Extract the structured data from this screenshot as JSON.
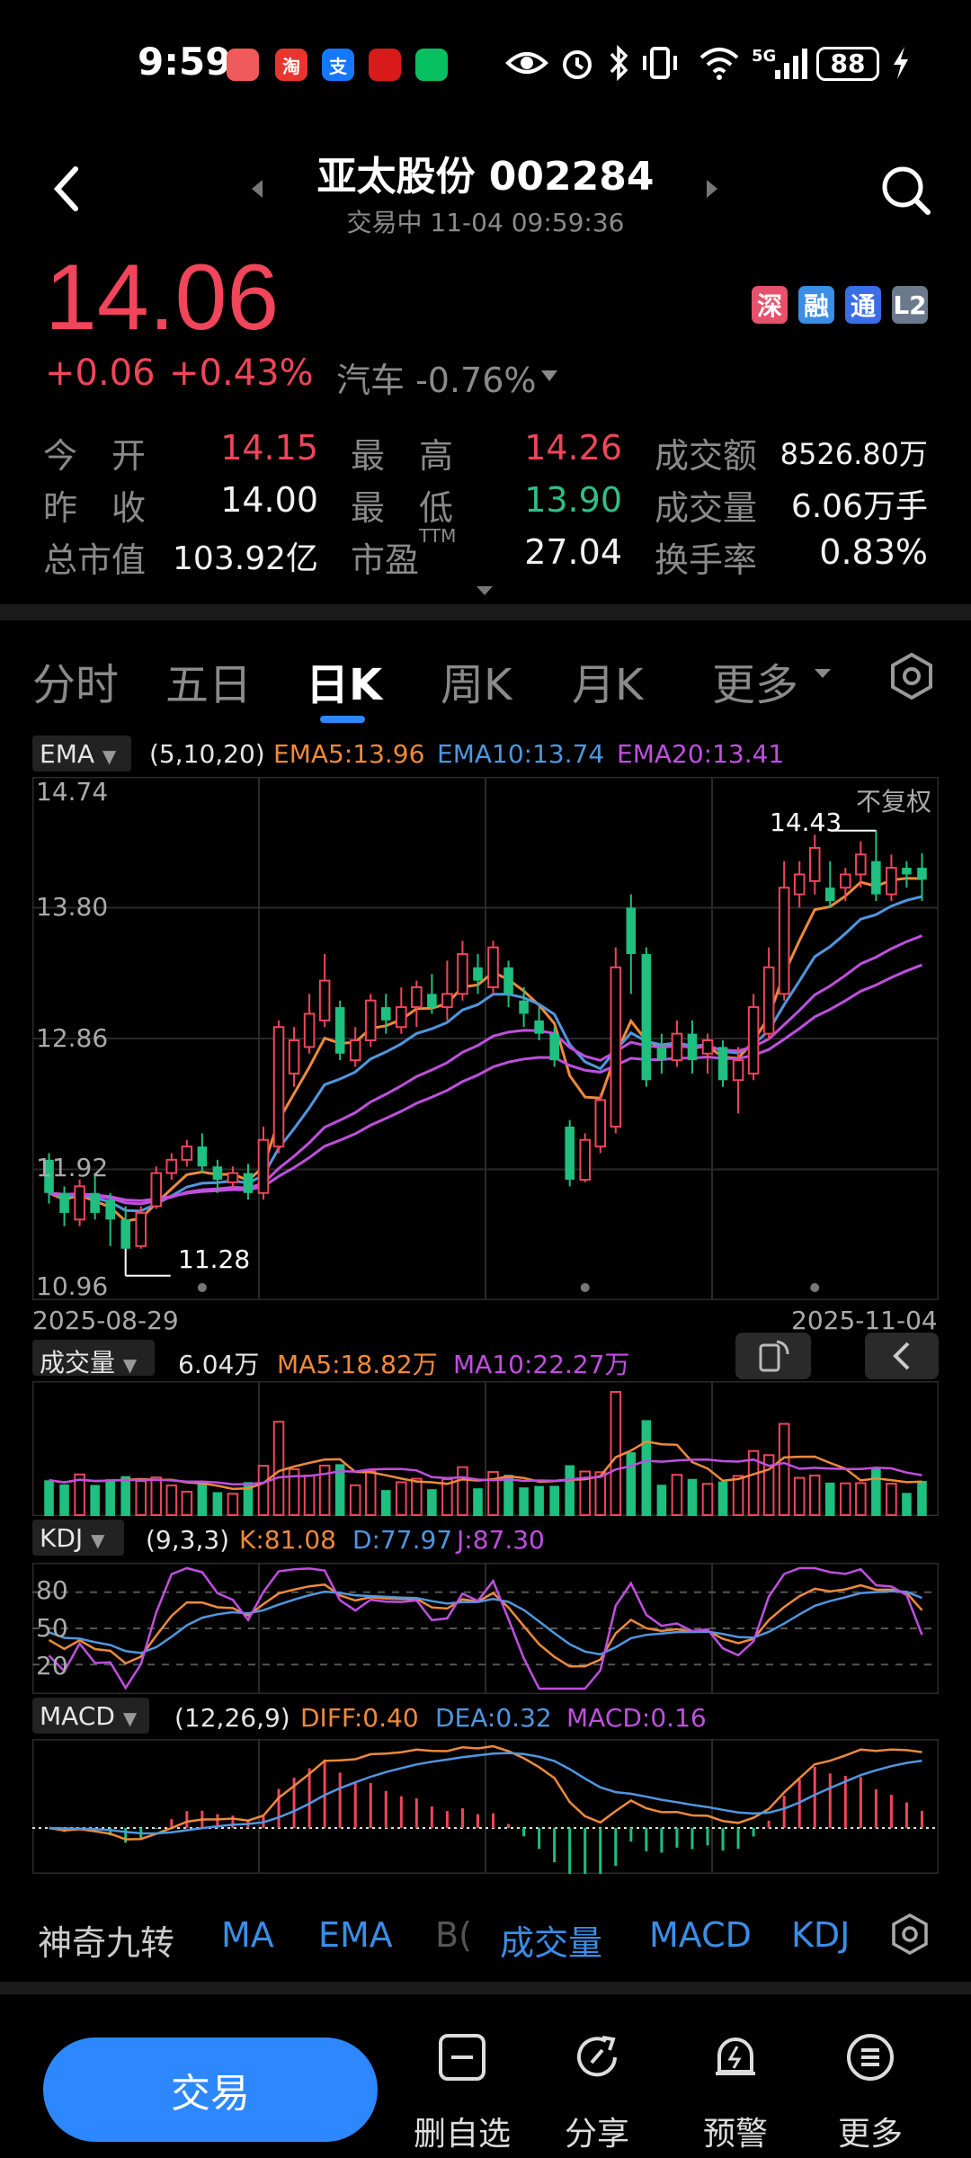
{
  "status_bar": {
    "time": "9:59",
    "battery": "88",
    "network": "5G",
    "apps": [
      {
        "name": "notes-app-icon",
        "glyph": "",
        "color": "#f05a5a"
      },
      {
        "name": "taobao-app-icon",
        "glyph": "淘",
        "color": "#e8362f"
      },
      {
        "name": "alipay-app-icon",
        "glyph": "支",
        "color": "#1677ff"
      },
      {
        "name": "finance-app-icon",
        "glyph": "",
        "color": "#d91a1a"
      },
      {
        "name": "wechat-app-icon",
        "glyph": "",
        "color": "#07c160"
      }
    ]
  },
  "header": {
    "title": "亚太股份 002284",
    "status": "交易中 11-04 09:59:36"
  },
  "quote": {
    "price": "14.06",
    "change": "+0.06",
    "change_pct": "+0.43%",
    "sector": "汽车 -0.76%",
    "tags": [
      "深",
      "融",
      "通",
      "L2"
    ]
  },
  "stats": {
    "rows": [
      [
        {
          "label": "今　开",
          "value": "14.15",
          "color": "red"
        },
        {
          "label": "最　高",
          "value": "14.26",
          "color": "red"
        },
        {
          "label": "成交额",
          "value": "8526.80万",
          "color": "white"
        }
      ],
      [
        {
          "label": "昨　收",
          "value": "14.00",
          "color": "white"
        },
        {
          "label": "最　低",
          "value": "13.90",
          "color": "green"
        },
        {
          "label": "成交量",
          "value": "6.06万手",
          "color": "white"
        }
      ],
      [
        {
          "label": "总市值",
          "value": "103.92亿",
          "color": "white"
        },
        {
          "label": "市盈",
          "value": "27.04",
          "color": "white",
          "sup": "TTM"
        },
        {
          "label": "换手率",
          "value": "0.83%",
          "color": "white"
        }
      ]
    ]
  },
  "tabs": [
    "分时",
    "五日",
    "日K",
    "周K",
    "月K",
    "更多"
  ],
  "active_tab": "日K",
  "ema": {
    "chip": "EMA",
    "params": "(5,10,20)",
    "ema5": "EMA5:13.96",
    "ema10": "EMA10:13.74",
    "ema20": "EMA20:13.41",
    "colors": {
      "ema5": "#ef8a3a",
      "ema10": "#4f97e0",
      "ema20": "#c04fe0"
    }
  },
  "kline": {
    "y_ticks": [
      "14.74",
      "13.80",
      "12.86",
      "11.92",
      "10.96"
    ],
    "adjust_label": "不复权",
    "high_label": "14.43",
    "low_label": "11.28",
    "date_start": "2025-08-29",
    "date_end": "2025-11-04"
  },
  "volume": {
    "chip": "成交量",
    "value": "6.04万",
    "ma5": "MA5:18.82万",
    "ma10": "MA10:22.27万"
  },
  "kdj": {
    "chip": "KDJ",
    "params": "(9,3,3)",
    "k": "K:81.08",
    "d": "D:77.97",
    "j": "J:87.30",
    "levels": [
      "80",
      "50",
      "20"
    ]
  },
  "macd": {
    "chip": "MACD",
    "params": "(12,26,9)",
    "diff": "DIFF:0.40",
    "dea": "DEA:0.32",
    "macd": "MACD:0.16"
  },
  "indicator_bar": {
    "items": [
      "神奇九转",
      "MA",
      "EMA",
      "B(",
      "成交量",
      "MACD",
      "KDJ"
    ]
  },
  "bottom_nav": {
    "trade": "交易",
    "items": [
      "删自选",
      "分享",
      "预警",
      "更多"
    ]
  },
  "chart_data": {
    "type": "candlestick",
    "date_range": [
      "2025-08-29",
      "2025-11-04"
    ],
    "y_range": [
      10.96,
      14.74
    ],
    "candles": [
      [
        11.95,
        11.7,
        12.0,
        11.62
      ],
      [
        11.7,
        11.55,
        11.75,
        11.45
      ],
      [
        11.5,
        11.75,
        11.8,
        11.45
      ],
      [
        11.7,
        11.55,
        11.85,
        11.5
      ],
      [
        11.65,
        11.5,
        11.7,
        11.3
      ],
      [
        11.5,
        11.28,
        11.6,
        11.28
      ],
      [
        11.3,
        11.55,
        11.6,
        11.28
      ],
      [
        11.6,
        11.85,
        11.9,
        11.58
      ],
      [
        11.85,
        11.95,
        12.0,
        11.8
      ],
      [
        11.95,
        12.05,
        12.1,
        11.9
      ],
      [
        12.05,
        11.9,
        12.15,
        11.85
      ],
      [
        11.9,
        11.8,
        11.95,
        11.7
      ],
      [
        11.78,
        11.85,
        11.9,
        11.74
      ],
      [
        11.85,
        11.7,
        11.92,
        11.65
      ],
      [
        11.7,
        12.1,
        12.2,
        11.65
      ],
      [
        12.05,
        12.95,
        13.0,
        12.0
      ],
      [
        12.6,
        12.85,
        12.95,
        12.5
      ],
      [
        12.8,
        13.05,
        13.2,
        12.75
      ],
      [
        13.0,
        13.3,
        13.5,
        12.95
      ],
      [
        13.1,
        12.75,
        13.15,
        12.7
      ],
      [
        12.7,
        12.85,
        12.95,
        12.65
      ],
      [
        12.85,
        13.15,
        13.2,
        12.8
      ],
      [
        13.1,
        13.0,
        13.2,
        12.9
      ],
      [
        12.95,
        13.1,
        13.25,
        12.9
      ],
      [
        13.1,
        13.25,
        13.3,
        12.95
      ],
      [
        13.2,
        13.1,
        13.35,
        13.05
      ],
      [
        13.1,
        13.2,
        13.45,
        13.0
      ],
      [
        13.2,
        13.5,
        13.6,
        13.15
      ],
      [
        13.4,
        13.3,
        13.5,
        13.2
      ],
      [
        13.25,
        13.55,
        13.6,
        13.2
      ],
      [
        13.4,
        13.2,
        13.45,
        13.1
      ],
      [
        13.15,
        13.05,
        13.25,
        12.95
      ],
      [
        13.0,
        12.9,
        13.1,
        12.85
      ],
      [
        12.9,
        12.7,
        12.95,
        12.65
      ],
      [
        12.2,
        11.8,
        12.25,
        11.75
      ],
      [
        11.8,
        12.1,
        12.15,
        11.78
      ],
      [
        12.05,
        12.4,
        12.45,
        12.0
      ],
      [
        12.2,
        13.4,
        13.55,
        12.15
      ],
      [
        13.85,
        13.5,
        13.95,
        13.2
      ],
      [
        13.5,
        12.55,
        13.55,
        12.5
      ],
      [
        12.8,
        12.7,
        12.9,
        12.6
      ],
      [
        12.7,
        12.9,
        13.0,
        12.65
      ],
      [
        12.9,
        12.7,
        13.0,
        12.6
      ],
      [
        12.75,
        12.85,
        12.9,
        12.6
      ],
      [
        12.8,
        12.55,
        12.85,
        12.5
      ],
      [
        12.55,
        12.7,
        12.8,
        12.3
      ],
      [
        12.6,
        13.1,
        13.2,
        12.55
      ],
      [
        12.9,
        13.4,
        13.55,
        12.85
      ],
      [
        13.2,
        14.0,
        14.2,
        13.15
      ],
      [
        13.95,
        14.1,
        14.2,
        13.85
      ],
      [
        14.05,
        14.3,
        14.4,
        13.95
      ],
      [
        14.0,
        13.9,
        14.2,
        13.85
      ],
      [
        14.0,
        14.1,
        14.15,
        13.9
      ],
      [
        14.1,
        14.25,
        14.35,
        14.0
      ],
      [
        14.2,
        13.95,
        14.43,
        13.9
      ],
      [
        13.95,
        14.15,
        14.25,
        13.9
      ],
      [
        14.15,
        14.1,
        14.2,
        14.0
      ],
      [
        14.15,
        14.06,
        14.26,
        13.9
      ]
    ]
  }
}
